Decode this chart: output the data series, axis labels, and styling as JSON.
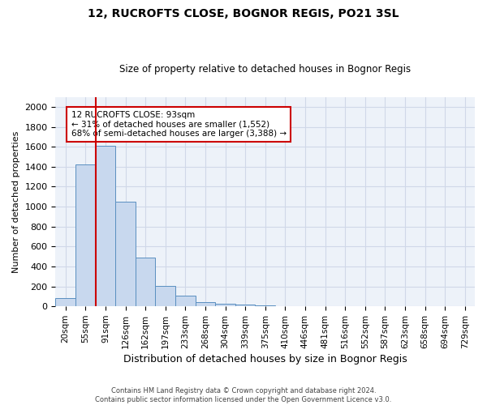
{
  "title1": "12, RUCROFTS CLOSE, BOGNOR REGIS, PO21 3SL",
  "title2": "Size of property relative to detached houses in Bognor Regis",
  "xlabel": "Distribution of detached houses by size in Bognor Regis",
  "ylabel": "Number of detached properties",
  "footnote1": "Contains HM Land Registry data © Crown copyright and database right 2024.",
  "footnote2": "Contains public sector information licensed under the Open Government Licence v3.0.",
  "bar_labels": [
    "20sqm",
    "55sqm",
    "91sqm",
    "126sqm",
    "162sqm",
    "197sqm",
    "233sqm",
    "268sqm",
    "304sqm",
    "339sqm",
    "375sqm",
    "410sqm",
    "446sqm",
    "481sqm",
    "516sqm",
    "552sqm",
    "587sqm",
    "623sqm",
    "658sqm",
    "694sqm",
    "729sqm"
  ],
  "bar_values": [
    80,
    1420,
    1610,
    1050,
    490,
    205,
    105,
    43,
    25,
    15,
    10,
    0,
    0,
    0,
    0,
    0,
    0,
    0,
    0,
    0,
    0
  ],
  "bar_color": "#c8d8ee",
  "bar_edge_color": "#5a8fc0",
  "grid_color": "#d0d8e8",
  "bg_color": "#edf2f9",
  "vline_color": "#cc0000",
  "vline_pos": 1.5,
  "annotation_text": "12 RUCROFTS CLOSE: 93sqm\n← 31% of detached houses are smaller (1,552)\n68% of semi-detached houses are larger (3,388) →",
  "ylim": [
    0,
    2100
  ],
  "yticks": [
    0,
    200,
    400,
    600,
    800,
    1000,
    1200,
    1400,
    1600,
    1800,
    2000
  ]
}
